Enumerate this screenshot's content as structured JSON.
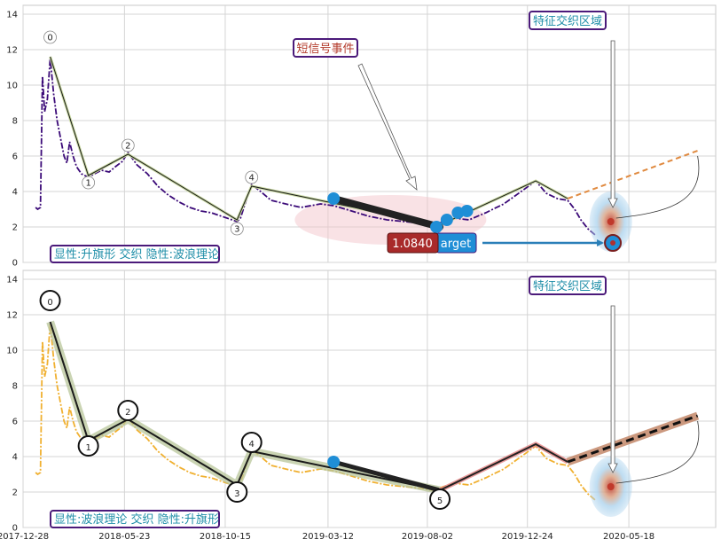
{
  "chart_data": [
    {
      "type": "line",
      "panel": "top",
      "xlim": [
        "2017-12-28",
        "2020-09-20"
      ],
      "ylim": [
        0,
        14.5
      ],
      "x_ticks": [],
      "y_ticks": [
        "0",
        "2",
        "4",
        "6",
        "8",
        "10",
        "12",
        "14"
      ],
      "grid": true,
      "price_series": {
        "color": "#3b0a78",
        "style": "dash-dot",
        "points": [
          [
            "2018-01-15",
            3.1
          ],
          [
            "2018-01-18",
            3.0
          ],
          [
            "2018-01-22",
            3.1
          ],
          [
            "2018-01-25",
            10.5
          ],
          [
            "2018-01-28",
            8.5
          ],
          [
            "2018-02-01",
            9.2
          ],
          [
            "2018-02-05",
            11.5
          ],
          [
            "2018-02-10",
            9.5
          ],
          [
            "2018-02-15",
            8.0
          ],
          [
            "2018-02-20",
            7.0
          ],
          [
            "2018-02-25",
            6.0
          ],
          [
            "2018-03-01",
            5.6
          ],
          [
            "2018-03-05",
            6.8
          ],
          [
            "2018-03-10",
            6.0
          ],
          [
            "2018-03-15",
            5.4
          ],
          [
            "2018-03-22",
            5.0
          ],
          [
            "2018-04-01",
            4.8
          ],
          [
            "2018-04-10",
            5.0
          ],
          [
            "2018-04-20",
            5.2
          ],
          [
            "2018-05-01",
            5.1
          ],
          [
            "2018-05-10",
            5.4
          ],
          [
            "2018-05-20",
            5.7
          ],
          [
            "2018-05-28",
            6.2
          ],
          [
            "2018-06-10",
            5.5
          ],
          [
            "2018-06-25",
            5.0
          ],
          [
            "2018-07-10",
            4.3
          ],
          [
            "2018-07-25",
            3.8
          ],
          [
            "2018-08-10",
            3.4
          ],
          [
            "2018-08-25",
            3.1
          ],
          [
            "2018-09-10",
            2.9
          ],
          [
            "2018-09-25",
            2.8
          ],
          [
            "2018-10-10",
            2.6
          ],
          [
            "2018-10-25",
            2.4
          ],
          [
            "2018-11-01",
            2.3
          ],
          [
            "2018-11-06",
            2.5
          ],
          [
            "2018-11-15",
            3.6
          ],
          [
            "2018-11-22",
            4.4
          ],
          [
            "2018-12-05",
            4.0
          ],
          [
            "2018-12-20",
            3.5
          ],
          [
            "2019-01-10",
            3.3
          ],
          [
            "2019-02-01",
            3.1
          ],
          [
            "2019-03-01",
            3.3
          ],
          [
            "2019-03-20",
            3.2
          ],
          [
            "2019-04-15",
            2.9
          ],
          [
            "2019-05-10",
            2.6
          ],
          [
            "2019-06-05",
            2.4
          ],
          [
            "2019-07-01",
            2.3
          ],
          [
            "2019-07-25",
            2.2
          ],
          [
            "2019-08-10",
            2.1
          ],
          [
            "2019-08-25",
            2.3
          ],
          [
            "2019-09-10",
            2.5
          ],
          [
            "2019-10-01",
            2.4
          ],
          [
            "2019-10-25",
            2.8
          ],
          [
            "2019-11-20",
            3.3
          ],
          [
            "2019-12-15",
            4.0
          ],
          [
            "2020-01-05",
            4.6
          ],
          [
            "2020-01-20",
            3.9
          ],
          [
            "2020-02-05",
            3.6
          ],
          [
            "2020-02-20",
            3.5
          ],
          [
            "2020-03-01",
            3.0
          ],
          [
            "2020-03-10",
            2.4
          ],
          [
            "2020-03-20",
            1.9
          ],
          [
            "2020-04-01",
            1.5
          ]
        ]
      },
      "pattern_line": {
        "color": "#1a1a1a",
        "points": [
          [
            "2018-02-05",
            11.6
          ],
          [
            "2018-04-01",
            4.9
          ],
          [
            "2018-05-28",
            6.1
          ],
          [
            "2018-11-01",
            2.4
          ],
          [
            "2018-11-22",
            4.3
          ],
          [
            "2019-08-20",
            2.1
          ],
          [
            "2020-01-05",
            4.6
          ],
          [
            "2020-02-20",
            3.6
          ]
        ]
      },
      "wave_labels": [
        {
          "label": "0",
          "x": "2018-02-05",
          "y": 12.7
        },
        {
          "label": "1",
          "x": "2018-04-01",
          "y": 4.5
        },
        {
          "label": "2",
          "x": "2018-05-28",
          "y": 6.6
        },
        {
          "label": "3",
          "x": "2018-11-01",
          "y": 1.9
        },
        {
          "label": "4",
          "x": "2018-11-22",
          "y": 4.8
        }
      ],
      "signal_line": {
        "from": [
          "2019-03-20",
          3.6
        ],
        "to": [
          "2019-08-20",
          2.0
        ]
      },
      "signal_dots": [
        [
          "2019-03-20",
          3.6
        ],
        [
          "2019-08-15",
          2.0
        ],
        [
          "2019-08-30",
          2.4
        ],
        [
          "2019-09-15",
          2.8
        ],
        [
          "2019-09-28",
          2.9
        ],
        [
          "2020-04-25",
          1.1
        ]
      ],
      "projection": {
        "from": [
          "2020-02-20",
          3.6
        ],
        "to": [
          "2020-08-25",
          6.3
        ]
      },
      "target_price": "1.0840",
      "target_text": "arget",
      "short_signal_label": "短信号事件",
      "feature_zone_label": "特征交织区域",
      "bottom_label": "显性:升旗形 交织 隐性:波浪理论"
    },
    {
      "type": "line",
      "panel": "bottom",
      "xlim": [
        "2017-12-28",
        "2020-09-20"
      ],
      "ylim": [
        0,
        14.5
      ],
      "x_ticks": [
        "2017-12-28",
        "2018-05-23",
        "2018-10-15",
        "2019-03-12",
        "2019-08-02",
        "2019-12-24",
        "2020-05-18"
      ],
      "y_ticks": [
        "0",
        "2",
        "4",
        "6",
        "8",
        "10",
        "12",
        "14"
      ],
      "grid": true,
      "price_series": {
        "color": "#f0b030",
        "style": "dash-dot",
        "points": [
          [
            "2018-01-15",
            3.1
          ],
          [
            "2018-01-18",
            3.0
          ],
          [
            "2018-01-22",
            3.1
          ],
          [
            "2018-01-25",
            10.5
          ],
          [
            "2018-01-28",
            8.5
          ],
          [
            "2018-02-01",
            9.2
          ],
          [
            "2018-02-05",
            11.5
          ],
          [
            "2018-02-10",
            9.5
          ],
          [
            "2018-02-15",
            8.0
          ],
          [
            "2018-02-20",
            7.0
          ],
          [
            "2018-02-25",
            6.0
          ],
          [
            "2018-03-01",
            5.6
          ],
          [
            "2018-03-05",
            6.8
          ],
          [
            "2018-03-10",
            6.0
          ],
          [
            "2018-03-15",
            5.4
          ],
          [
            "2018-03-22",
            5.0
          ],
          [
            "2018-04-01",
            4.8
          ],
          [
            "2018-04-10",
            5.0
          ],
          [
            "2018-04-20",
            5.2
          ],
          [
            "2018-05-01",
            5.1
          ],
          [
            "2018-05-10",
            5.4
          ],
          [
            "2018-05-20",
            5.7
          ],
          [
            "2018-05-28",
            6.2
          ],
          [
            "2018-06-10",
            5.5
          ],
          [
            "2018-06-25",
            5.0
          ],
          [
            "2018-07-10",
            4.3
          ],
          [
            "2018-07-25",
            3.8
          ],
          [
            "2018-08-10",
            3.4
          ],
          [
            "2018-08-25",
            3.1
          ],
          [
            "2018-09-10",
            2.9
          ],
          [
            "2018-09-25",
            2.8
          ],
          [
            "2018-10-10",
            2.6
          ],
          [
            "2018-10-25",
            2.4
          ],
          [
            "2018-11-01",
            2.3
          ],
          [
            "2018-11-06",
            2.5
          ],
          [
            "2018-11-15",
            3.6
          ],
          [
            "2018-11-22",
            4.4
          ],
          [
            "2018-12-05",
            4.0
          ],
          [
            "2018-12-20",
            3.5
          ],
          [
            "2019-01-10",
            3.3
          ],
          [
            "2019-02-01",
            3.1
          ],
          [
            "2019-03-01",
            3.3
          ],
          [
            "2019-03-20",
            3.2
          ],
          [
            "2019-04-15",
            2.9
          ],
          [
            "2019-05-10",
            2.6
          ],
          [
            "2019-06-05",
            2.4
          ],
          [
            "2019-07-01",
            2.3
          ],
          [
            "2019-07-25",
            2.2
          ],
          [
            "2019-08-10",
            2.1
          ],
          [
            "2019-08-25",
            2.3
          ],
          [
            "2019-09-10",
            2.5
          ],
          [
            "2019-10-01",
            2.4
          ],
          [
            "2019-10-25",
            2.8
          ],
          [
            "2019-11-20",
            3.3
          ],
          [
            "2019-12-15",
            4.0
          ],
          [
            "2020-01-05",
            4.6
          ],
          [
            "2020-01-20",
            3.9
          ],
          [
            "2020-02-05",
            3.6
          ],
          [
            "2020-02-20",
            3.5
          ],
          [
            "2020-03-01",
            3.0
          ],
          [
            "2020-03-10",
            2.4
          ],
          [
            "2020-03-20",
            1.9
          ],
          [
            "2020-04-01",
            1.5
          ]
        ]
      },
      "pattern_line": {
        "color": "#1a1a1a",
        "points": [
          [
            "2018-02-05",
            11.6
          ],
          [
            "2018-04-01",
            4.9
          ],
          [
            "2018-05-28",
            6.1
          ],
          [
            "2018-11-01",
            2.4
          ],
          [
            "2018-11-22",
            4.3
          ],
          [
            "2019-08-20",
            2.1
          ]
        ]
      },
      "wave_labels": [
        {
          "label": "0",
          "x": "2018-02-05",
          "y": 12.8
        },
        {
          "label": "1",
          "x": "2018-04-01",
          "y": 4.6
        },
        {
          "label": "2",
          "x": "2018-05-28",
          "y": 6.6
        },
        {
          "label": "3",
          "x": "2018-11-01",
          "y": 2.0
        },
        {
          "label": "4",
          "x": "2018-11-22",
          "y": 4.8
        },
        {
          "label": "5",
          "x": "2019-08-20",
          "y": 1.6
        }
      ],
      "signal_line": {
        "from": [
          "2019-03-20",
          3.7
        ],
        "to": [
          "2019-08-20",
          2.1
        ]
      },
      "signal_dots": [
        [
          "2019-03-20",
          3.7
        ]
      ],
      "flag_line": {
        "points": [
          [
            "2019-08-20",
            2.1
          ],
          [
            "2020-01-05",
            4.7
          ],
          [
            "2020-02-20",
            3.7
          ]
        ]
      },
      "projection": {
        "from": [
          "2020-02-20",
          3.7
        ],
        "to": [
          "2020-08-25",
          6.3
        ]
      },
      "feature_zone_label": "特征交织区域",
      "bottom_label": "显性:波浪理论 交织 隐性:升旗形"
    }
  ]
}
